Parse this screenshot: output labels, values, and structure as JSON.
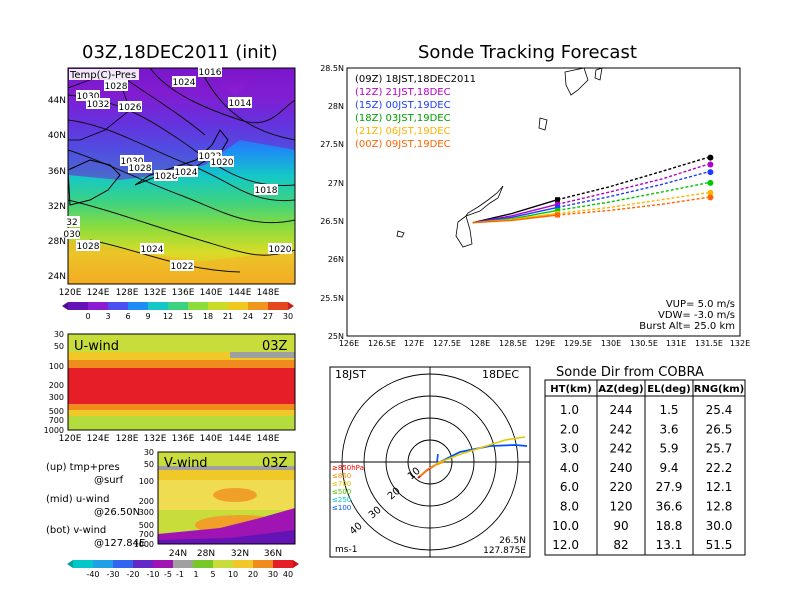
{
  "titles": {
    "init": "03Z,18DEC2011 (init)",
    "track": "Sonde Tracking Forecast",
    "dir": "Sonde Dir from COBRA"
  },
  "map_panel": {
    "label": "Temp(C)-Pres",
    "lon_ticks": [
      "120E",
      "124E",
      "128E",
      "132E",
      "136E",
      "140E",
      "144E",
      "148E"
    ],
    "lat_ticks": [
      "44N",
      "40N",
      "36N",
      "32N",
      "28N",
      "24N"
    ],
    "isobar_labels": [
      "1028",
      "1030",
      "1032",
      "1026",
      "1024",
      "1016",
      "1014",
      "1030",
      "1028",
      "1026",
      "1024",
      "1022",
      "1020",
      "1018",
      "1032",
      "1030",
      "1028",
      "1024",
      "1022",
      "1020"
    ],
    "colorbar": [
      "0",
      "3",
      "6",
      "9",
      "12",
      "15",
      "18",
      "21",
      "24",
      "27",
      "30"
    ]
  },
  "uwind_panel": {
    "title": "U-wind",
    "time": "03Z",
    "y_ticks": [
      "30",
      "50",
      "100",
      "200",
      "300",
      "500",
      "700",
      "1000"
    ],
    "lon_ticks": [
      "120E",
      "124E",
      "128E",
      "132E",
      "136E",
      "140E",
      "144E",
      "148E"
    ]
  },
  "vwind_panel": {
    "title": "V-wind",
    "time": "03Z",
    "y_ticks": [
      "30",
      "50",
      "100",
      "200",
      "300",
      "500",
      "700",
      "1000"
    ],
    "lat_ticks": [
      "24N",
      "28N",
      "32N",
      "36N"
    ],
    "colorbar": [
      "-40",
      "-30",
      "-20",
      "-10",
      "-5",
      "-1",
      "1",
      "5",
      "10",
      "20",
      "30",
      "40"
    ]
  },
  "notes": [
    {
      "a": "(up) tmp+pres",
      "b": "@surf"
    },
    {
      "a": "(mid) u-wind",
      "b": "@26.50N"
    },
    {
      "a": "(bot) v-wind",
      "b": "@127.84E"
    }
  ],
  "track_info": {
    "x_ticks": [
      "126E",
      "126.5E",
      "127E",
      "127.5E",
      "128E",
      "128.5E",
      "129E",
      "129.5E",
      "130E",
      "130.5E",
      "131E",
      "131.5E",
      "132E"
    ],
    "y_ticks": [
      "28.5N",
      "28N",
      "27.5N",
      "27N",
      "26.5N",
      "26N",
      "25.5N",
      "25N"
    ],
    "vup": "VUP= 5.0 m/s",
    "vdw": "VDW= -3.0 m/s",
    "burst": "Burst Alt= 25.0 km"
  },
  "chart_data": {
    "type": "line",
    "title": "Sonde Tracking Forecast",
    "xlim": [
      126,
      132
    ],
    "ylim": [
      25,
      28.5
    ],
    "series": [
      {
        "name": "(09Z) 18JST,18DEC2011",
        "color": "#000000",
        "lon": [
          127.9,
          128.5,
          129.2,
          130.0,
          130.8,
          131.5
        ],
        "lat": [
          26.48,
          26.6,
          26.78,
          26.95,
          27.15,
          27.33
        ]
      },
      {
        "name": "(12Z) 21JST,18DEC",
        "color": "#b400c8",
        "lon": [
          127.9,
          128.5,
          129.2,
          130.0,
          130.8,
          131.5
        ],
        "lat": [
          26.48,
          26.57,
          26.72,
          26.88,
          27.05,
          27.24
        ]
      },
      {
        "name": "(15Z) 00JST,19DEC",
        "color": "#1e3cff",
        "lon": [
          127.9,
          128.5,
          129.2,
          130.0,
          130.8,
          131.5
        ],
        "lat": [
          26.48,
          26.55,
          26.68,
          26.82,
          26.98,
          27.14
        ]
      },
      {
        "name": "(18Z) 03JST,19DEC",
        "color": "#00c800",
        "lon": [
          127.9,
          128.5,
          129.2,
          130.0,
          130.8,
          131.5
        ],
        "lat": [
          26.48,
          26.53,
          26.64,
          26.75,
          26.88,
          27.0
        ]
      },
      {
        "name": "(21Z) 06JST,19DEC",
        "color": "#ffb400",
        "lon": [
          127.9,
          128.5,
          129.2,
          130.0,
          130.8,
          131.5
        ],
        "lat": [
          26.48,
          26.52,
          26.6,
          26.68,
          26.78,
          26.87
        ]
      },
      {
        "name": "(00Z) 09JST,19DEC",
        "color": "#ff6400",
        "lon": [
          127.9,
          128.5,
          129.2,
          130.0,
          130.8,
          131.5
        ],
        "lat": [
          26.48,
          26.51,
          26.58,
          26.64,
          26.72,
          26.81
        ]
      }
    ]
  },
  "polar": {
    "time": "18JST",
    "date": "18DEC",
    "ring_labels": [
      "10",
      "20",
      "30",
      "40"
    ],
    "unit": "ms-1",
    "lat": "26.5N",
    "lon": "127.875E",
    "legend": [
      {
        "t": "≥850hPa",
        "c": "#ff0000"
      },
      {
        "t": "≤850",
        "c": "#ff8c00"
      },
      {
        "t": "≤700",
        "c": "#e6c800"
      },
      {
        "t": "≤500",
        "c": "#50c800"
      },
      {
        "t": "≤250",
        "c": "#00c8c8"
      },
      {
        "t": "≤100",
        "c": "#0050ff"
      }
    ]
  },
  "table": {
    "headers": [
      "HT(km)",
      "AZ(deg)",
      "EL(deg)",
      "RNG(km)"
    ],
    "rows": [
      [
        "1.0",
        "244",
        "1.5",
        "25.4"
      ],
      [
        "2.0",
        "242",
        "3.6",
        "26.5"
      ],
      [
        "3.0",
        "242",
        "5.9",
        "25.7"
      ],
      [
        "4.0",
        "240",
        "9.4",
        "22.2"
      ],
      [
        "6.0",
        "220",
        "27.9",
        "12.1"
      ],
      [
        "8.0",
        "120",
        "36.6",
        "12.8"
      ],
      [
        "10.0",
        "90",
        "18.8",
        "30.0"
      ],
      [
        "12.0",
        "82",
        "13.1",
        "51.5"
      ]
    ]
  }
}
